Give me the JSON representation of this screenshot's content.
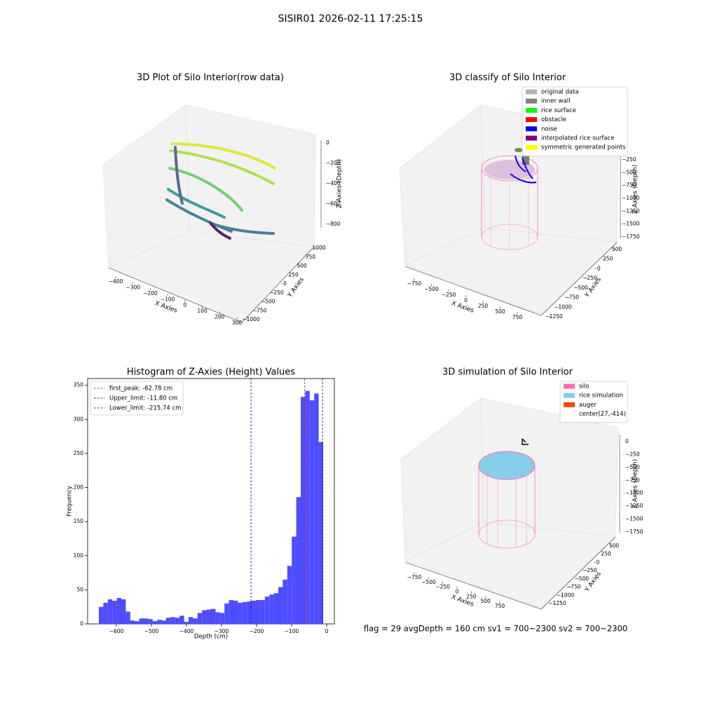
{
  "title": "SISIR01 2026-02-11 17:25:15",
  "footer": "flag = 29  avgDepth = 160 cm  sv1 = 700~2300  sv2 = 700~2300",
  "chart_data": [
    {
      "type": "scatter3d",
      "title": "3D Plot of Silo Interior(row data)",
      "x_axis": {
        "label": "X Axies",
        "ticks": [
          {
            "value": -400,
            "label": "−400"
          },
          {
            "value": -300,
            "label": "−300"
          },
          {
            "value": -200,
            "label": "−200"
          },
          {
            "value": -100,
            "label": "−100"
          },
          0,
          100,
          200,
          300
        ]
      },
      "y_axis": {
        "label": "Y Axies",
        "ticks": [
          {
            "value": -1000,
            "label": "−1000"
          },
          {
            "value": -750,
            "label": "−750"
          },
          {
            "value": -500,
            "label": "−500"
          },
          {
            "value": -250,
            "label": "−250"
          },
          0,
          250,
          500,
          750,
          1000
        ]
      },
      "z_axis": {
        "label": "Z Axies (Depth)",
        "ticks": [
          0,
          {
            "value": -200,
            "label": "−200"
          },
          {
            "value": -400,
            "label": "−400"
          },
          {
            "value": -600,
            "label": "−600"
          },
          {
            "value": -800,
            "label": "−800"
          }
        ]
      }
    },
    {
      "type": "scatter3d",
      "title": "3D classify of Silo Interior",
      "legend": [
        {
          "name": "original data",
          "color": "#b3b3b3"
        },
        {
          "name": "inner wall",
          "color": "#808080"
        },
        {
          "name": "rice surface",
          "color": "#00ff00"
        },
        {
          "name": "obstacle",
          "color": "#ff0000"
        },
        {
          "name": "noise",
          "color": "#0000ff"
        },
        {
          "name": "interpolated rice surface",
          "color": "#800080"
        },
        {
          "name": "symmetric generated points",
          "color": "#ffff00"
        }
      ],
      "x_axis": {
        "label": "X Axies",
        "ticks": [
          {
            "value": -750,
            "label": "−750"
          },
          {
            "value": -500,
            "label": "−500"
          },
          {
            "value": -250,
            "label": "−250"
          },
          0,
          250,
          500,
          750
        ]
      },
      "y_axis": {
        "label": "Y Axies",
        "ticks": [
          {
            "value": -1250,
            "label": "−1250"
          },
          {
            "value": -1000,
            "label": "−1000"
          },
          {
            "value": -750,
            "label": "−750"
          },
          {
            "value": -500,
            "label": "−500"
          },
          {
            "value": -250,
            "label": "−250"
          },
          0,
          250,
          500
        ]
      },
      "z_axis": {
        "label": "Z Axies (Depth)",
        "ticks": [
          {
            "value": -250,
            "label": "−250"
          },
          {
            "value": -500,
            "label": "−500"
          },
          {
            "value": -750,
            "label": "−750"
          },
          {
            "value": -1000,
            "label": "−1000"
          },
          {
            "value": -1250,
            "label": "−1250"
          },
          {
            "value": -1500,
            "label": "−1500"
          },
          {
            "value": -1750,
            "label": "−1750"
          }
        ]
      }
    },
    {
      "type": "histogram",
      "title": "Histogram of Z-Axies (Height) Values",
      "xlabel": "Depth (cm)",
      "ylabel": "Frequency",
      "color": "#4d4dff",
      "bins": [
        -650,
        -637.2,
        -624.4,
        -611.6,
        -598.8,
        -586,
        -573.2,
        -560.4,
        -547.6,
        -534.8,
        -522,
        -509.2,
        -496.4,
        -483.6,
        -470.8,
        -458,
        -445.2,
        -432.4,
        -419.6,
        -406.8,
        -394,
        -381.2,
        -368.4,
        -355.6,
        -342.8,
        -330,
        -317.2,
        -304.4,
        -291.6,
        -278.8,
        -266,
        -253.2,
        -240.4,
        -227.6,
        -214.8,
        -202,
        -189.2,
        -176.4,
        -163.6,
        -150.8,
        -138,
        -125.2,
        -112.4,
        -99.6,
        -86.8,
        -74,
        -61.2,
        -48.4,
        -35.6,
        -22.8,
        -10
      ],
      "values": [
        25,
        31,
        36,
        34,
        38,
        36,
        18,
        5,
        4,
        8,
        8,
        7,
        4,
        6,
        5,
        9,
        10,
        9,
        12,
        3,
        10,
        8,
        16,
        20,
        21,
        22,
        17,
        16,
        30,
        35,
        34,
        31,
        32,
        33,
        34,
        35,
        35,
        40,
        43,
        45,
        54,
        65,
        85,
        128,
        186,
        333,
        342,
        328,
        338,
        267
      ],
      "lines": [
        {
          "label": "first_peak: -62.78 cm",
          "value": -62.78,
          "color": "#ff0000"
        },
        {
          "label": "Upper_limit: -11.80 cm",
          "value": -11.8,
          "color": "#0000cc"
        },
        {
          "label": "Lower_limit: -215.74 cm",
          "value": -215.74,
          "color": "#0000cc"
        }
      ],
      "xlim": [
        -682,
        22
      ],
      "ylim": [
        0,
        360
      ],
      "xticks": [
        {
          "value": -600,
          "label": "−600"
        },
        {
          "value": -500,
          "label": "−500"
        },
        {
          "value": -400,
          "label": "−400"
        },
        {
          "value": -300,
          "label": "−300"
        },
        {
          "value": -200,
          "label": "−200"
        },
        {
          "value": -100,
          "label": "−100"
        },
        0
      ],
      "yticks": [
        0,
        50,
        100,
        150,
        200,
        250,
        300,
        350
      ],
      "legend_position": "upper left"
    },
    {
      "type": "scatter3d",
      "title": "3D simulation of Silo Interior",
      "legend": [
        {
          "name": "silo",
          "color": "#ff69b4"
        },
        {
          "name": "rice simulation",
          "color": "#87ceeb"
        },
        {
          "name": "auger",
          "color": "#ff4500"
        },
        {
          "name": "center(27,-414)",
          "color": null
        }
      ],
      "x_axis": {
        "label": "X Axies",
        "ticks": [
          {
            "value": -750,
            "label": "−750"
          },
          {
            "value": -500,
            "label": "−500"
          },
          {
            "value": -250,
            "label": "−250"
          },
          0,
          250,
          500,
          750
        ]
      },
      "y_axis": {
        "label": "Y Axies",
        "ticks": [
          {
            "value": -1250,
            "label": "−1250"
          },
          {
            "value": -1000,
            "label": "−1000"
          },
          {
            "value": -750,
            "label": "−750"
          },
          {
            "value": -500,
            "label": "−500"
          },
          {
            "value": -250,
            "label": "−250"
          },
          0,
          250,
          500
        ]
      },
      "z_axis": {
        "label": "Z Axies (Depth)",
        "ticks": [
          0,
          {
            "value": -250,
            "label": "−250"
          },
          {
            "value": -500,
            "label": "−500"
          },
          {
            "value": -750,
            "label": "−750"
          },
          {
            "value": -1000,
            "label": "−1000"
          },
          {
            "value": -1250,
            "label": "−1250"
          },
          {
            "value": -1500,
            "label": "−1500"
          },
          {
            "value": -1750,
            "label": "−1750"
          }
        ]
      }
    }
  ]
}
